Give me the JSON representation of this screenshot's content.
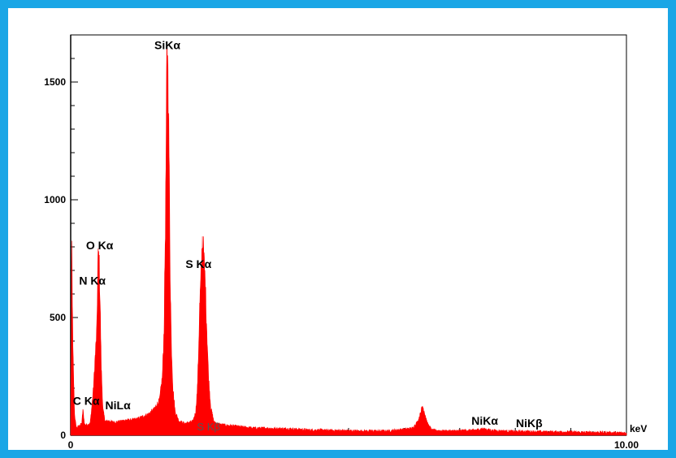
{
  "chart_data": {
    "type": "area",
    "title": "",
    "xlabel": "keV",
    "ylabel": "",
    "xlim": [
      0,
      10
    ],
    "ylim": [
      0,
      1700
    ],
    "x_tick_labels": [
      {
        "x": 0,
        "label": "0"
      },
      {
        "x": 10,
        "label": "10.00"
      }
    ],
    "y_ticks": [
      {
        "y": 0,
        "label": "0"
      },
      {
        "y": 500,
        "label": "500"
      },
      {
        "y": 1000,
        "label": "1000"
      },
      {
        "y": 1500,
        "label": "1500"
      }
    ],
    "series_color": "#ff0000",
    "series": [
      {
        "values": [
          [
            0.0,
            0
          ],
          [
            0.02,
            800
          ],
          [
            0.04,
            360
          ],
          [
            0.07,
            90
          ],
          [
            0.1,
            30
          ],
          [
            0.15,
            40
          ],
          [
            0.2,
            50
          ],
          [
            0.22,
            110
          ],
          [
            0.25,
            45
          ],
          [
            0.3,
            45
          ],
          [
            0.35,
            50
          ],
          [
            0.38,
            120
          ],
          [
            0.41,
            200
          ],
          [
            0.44,
            330
          ],
          [
            0.47,
            440
          ],
          [
            0.49,
            740
          ],
          [
            0.51,
            760
          ],
          [
            0.53,
            560
          ],
          [
            0.55,
            290
          ],
          [
            0.58,
            110
          ],
          [
            0.62,
            60
          ],
          [
            0.7,
            60
          ],
          [
            0.8,
            55
          ],
          [
            0.9,
            60
          ],
          [
            1.0,
            65
          ],
          [
            1.1,
            65
          ],
          [
            1.2,
            70
          ],
          [
            1.3,
            80
          ],
          [
            1.4,
            90
          ],
          [
            1.5,
            110
          ],
          [
            1.6,
            150
          ],
          [
            1.65,
            250
          ],
          [
            1.68,
            450
          ],
          [
            1.71,
            1000
          ],
          [
            1.73,
            1580
          ],
          [
            1.75,
            1550
          ],
          [
            1.77,
            1200
          ],
          [
            1.79,
            700
          ],
          [
            1.81,
            400
          ],
          [
            1.84,
            200
          ],
          [
            1.88,
            100
          ],
          [
            1.95,
            60
          ],
          [
            2.05,
            50
          ],
          [
            2.15,
            55
          ],
          [
            2.2,
            60
          ],
          [
            2.25,
            100
          ],
          [
            2.28,
            200
          ],
          [
            2.3,
            350
          ],
          [
            2.32,
            540
          ],
          [
            2.35,
            690
          ],
          [
            2.37,
            830
          ],
          [
            2.39,
            780
          ],
          [
            2.42,
            650
          ],
          [
            2.45,
            450
          ],
          [
            2.48,
            250
          ],
          [
            2.52,
            120
          ],
          [
            2.58,
            55
          ],
          [
            2.7,
            45
          ],
          [
            2.9,
            40
          ],
          [
            3.1,
            35
          ],
          [
            3.3,
            30
          ],
          [
            3.5,
            30
          ],
          [
            3.7,
            28
          ],
          [
            3.9,
            28
          ],
          [
            4.1,
            25
          ],
          [
            4.3,
            22
          ],
          [
            4.5,
            22
          ],
          [
            4.7,
            20
          ],
          [
            4.9,
            20
          ],
          [
            5.1,
            18
          ],
          [
            5.3,
            18
          ],
          [
            5.5,
            18
          ],
          [
            5.7,
            18
          ],
          [
            5.85,
            22
          ],
          [
            6.0,
            25
          ],
          [
            6.15,
            30
          ],
          [
            6.25,
            60
          ],
          [
            6.3,
            100
          ],
          [
            6.33,
            125
          ],
          [
            6.37,
            95
          ],
          [
            6.42,
            50
          ],
          [
            6.5,
            22
          ],
          [
            6.7,
            18
          ],
          [
            6.9,
            18
          ],
          [
            7.1,
            20
          ],
          [
            7.3,
            22
          ],
          [
            7.4,
            28
          ],
          [
            7.5,
            24
          ],
          [
            7.6,
            20
          ],
          [
            7.8,
            18
          ],
          [
            8.0,
            16
          ],
          [
            8.2,
            16
          ],
          [
            8.4,
            15
          ],
          [
            8.6,
            14
          ],
          [
            8.8,
            14
          ],
          [
            9.0,
            14
          ],
          [
            9.2,
            12
          ],
          [
            9.4,
            12
          ],
          [
            9.6,
            12
          ],
          [
            9.8,
            10
          ],
          [
            10.0,
            10
          ]
        ]
      }
    ],
    "peak_labels": [
      {
        "text": "SiKα",
        "x": 1.74,
        "y": 1640,
        "style": "major"
      },
      {
        "text": "O Kα",
        "x": 0.52,
        "y": 790,
        "style": "major"
      },
      {
        "text": "N Kα",
        "x": 0.39,
        "y": 640,
        "style": "major"
      },
      {
        "text": "S Kα",
        "x": 2.3,
        "y": 710,
        "style": "major"
      },
      {
        "text": "C Kα",
        "x": 0.28,
        "y": 130,
        "style": "major"
      },
      {
        "text": "NiLα",
        "x": 0.85,
        "y": 110,
        "style": "major"
      },
      {
        "text": "S Kβ",
        "x": 2.48,
        "y": 20,
        "style": "minor"
      },
      {
        "text": "NiKα",
        "x": 7.45,
        "y": 45,
        "style": "major"
      },
      {
        "text": "NiKβ",
        "x": 8.25,
        "y": 35,
        "style": "major"
      }
    ]
  }
}
